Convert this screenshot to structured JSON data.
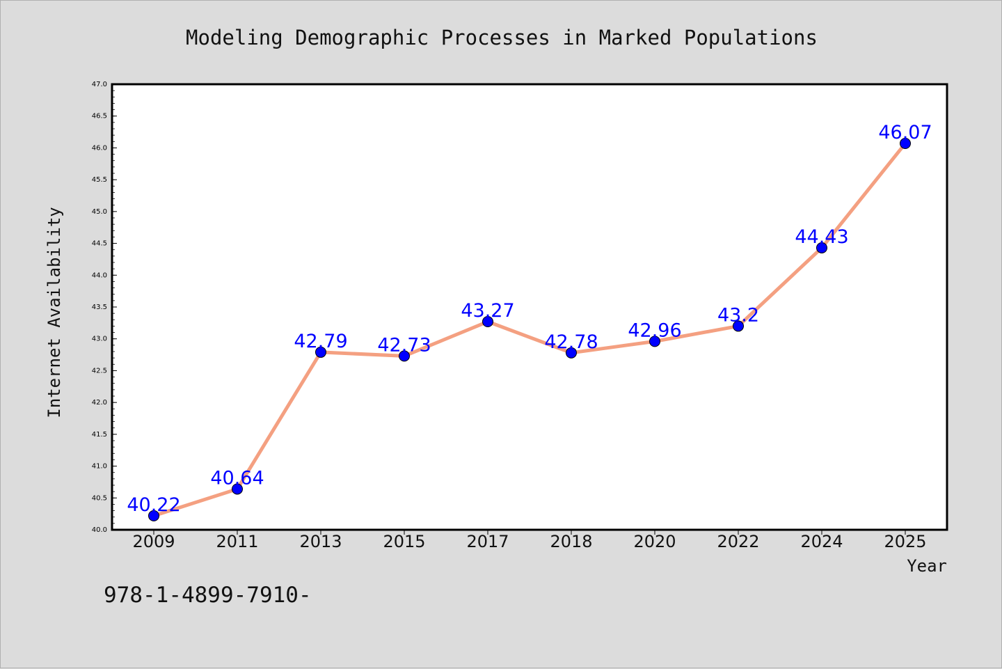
{
  "chart_data": {
    "type": "line",
    "title": "Modeling Demographic Processes in Marked Populations",
    "xlabel": "Year",
    "ylabel": "Internet Availability",
    "categories": [
      "2009",
      "2011",
      "2013",
      "2015",
      "2017",
      "2018",
      "2020",
      "2022",
      "2024",
      "2025"
    ],
    "values": [
      40.22,
      40.64,
      42.79,
      42.73,
      43.27,
      42.78,
      42.96,
      43.2,
      44.43,
      46.07
    ],
    "data_labels": [
      "40.22",
      "40.64",
      "42.79",
      "42.73",
      "43.27",
      "42.78",
      "42.96",
      "43.2",
      "44.43",
      "46.07"
    ],
    "ylim": [
      40.0,
      47.0
    ],
    "y_ticks": [
      "40.0",
      "40.5",
      "41.0",
      "41.5",
      "42.0",
      "42.5",
      "43.0",
      "43.5",
      "44.0",
      "44.5",
      "45.0",
      "45.5",
      "46.0",
      "46.5",
      "47.0"
    ],
    "grid": false,
    "legend": "none",
    "colors": {
      "line": "#f4a081",
      "marker": "#0000ff",
      "label": "#0000ff",
      "background": "#dcdcdc",
      "plot_background": "#ffffff"
    }
  },
  "footer_text": "978-1-4899-7910-"
}
